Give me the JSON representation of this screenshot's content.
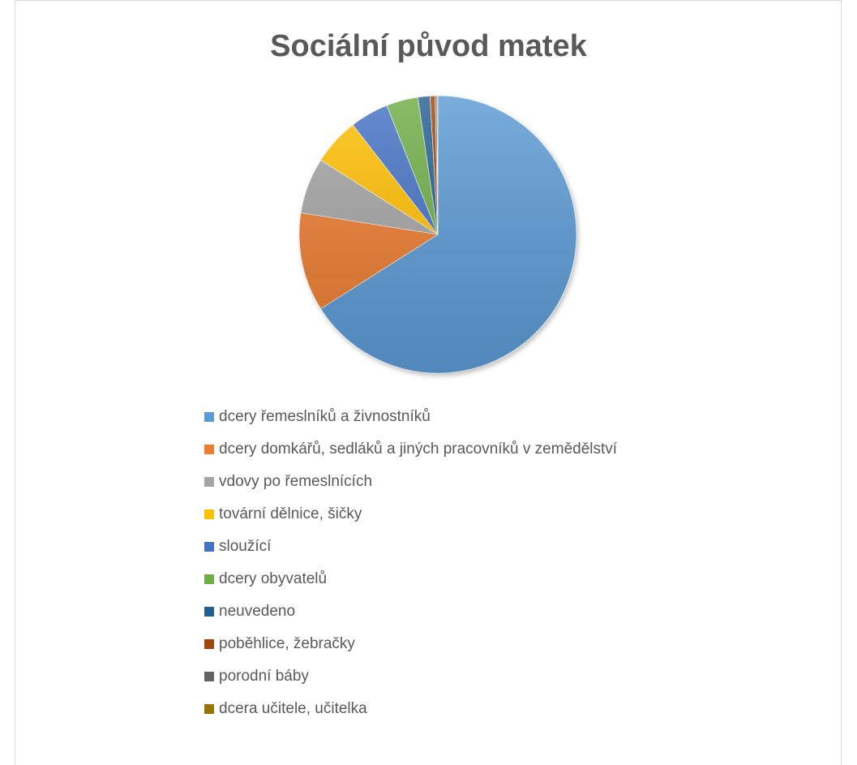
{
  "chart_data": {
    "type": "pie",
    "title": "Sociální původ matek",
    "legend_position": "bottom",
    "slices": [
      {
        "label": "dcery řemeslníků a živnostníků",
        "value": 66.0,
        "color": "#5B9BD5"
      },
      {
        "label": "dcery domkářů, sedláků a jiných pracovníků v zemědělství",
        "value": 11.5,
        "color": "#ED7D31"
      },
      {
        "label": "vdovy po řemeslnících",
        "value": 6.5,
        "color": "#A5A5A5"
      },
      {
        "label": "tovární dělnice, šičky",
        "value": 5.5,
        "color": "#FFC000"
      },
      {
        "label": "sloužící",
        "value": 4.5,
        "color": "#4472C4"
      },
      {
        "label": "dcery obyvatelů",
        "value": 3.7,
        "color": "#70AD47"
      },
      {
        "label": "neuvedeno",
        "value": 1.4,
        "color": "#255E91"
      },
      {
        "label": "poběhlice, žebračky",
        "value": 0.6,
        "color": "#9E480E"
      },
      {
        "label": "porodní báby",
        "value": 0.2,
        "color": "#636363"
      },
      {
        "label": "dcera učitele, učitelka",
        "value": 0.1,
        "color": "#997300"
      }
    ]
  }
}
